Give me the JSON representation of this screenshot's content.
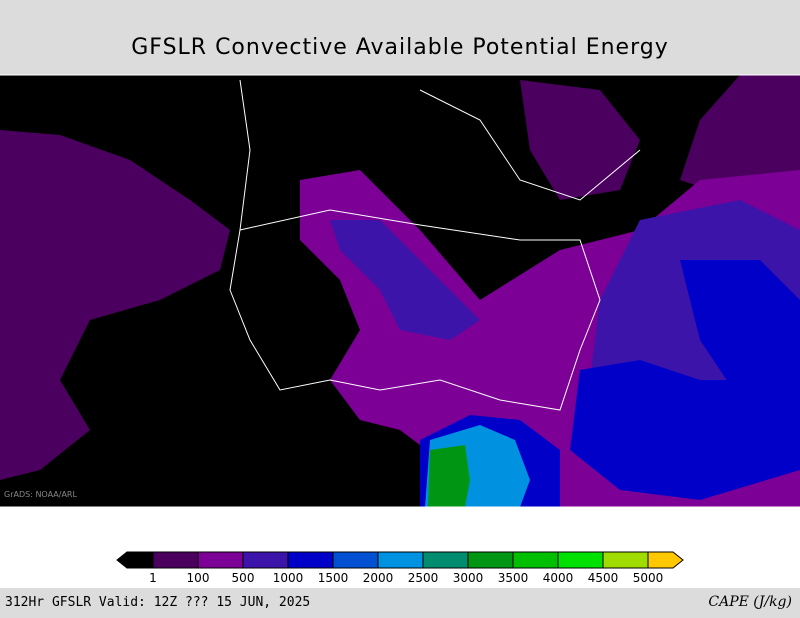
{
  "header": {
    "title": "GFSLR Convective Available Potential Energy"
  },
  "map": {
    "watermark": "GrADS: NOAA/ARL"
  },
  "colorbar": {
    "colors": [
      "#000000",
      "#4b0060",
      "#7d0096",
      "#3c14aa",
      "#0000c8",
      "#0050d2",
      "#0091e1",
      "#008c6e",
      "#009614",
      "#00be00",
      "#00e100",
      "#a0dc00",
      "#ffc800"
    ],
    "labels": [
      1,
      100,
      500,
      1000,
      1500,
      2000,
      2500,
      3000,
      3500,
      4000,
      4500,
      5000
    ]
  },
  "footer": {
    "left": "312Hr GFSLR Valid: 12Z ??? 15 JUN, 2025",
    "right": "CAPE (J/kg)"
  }
}
